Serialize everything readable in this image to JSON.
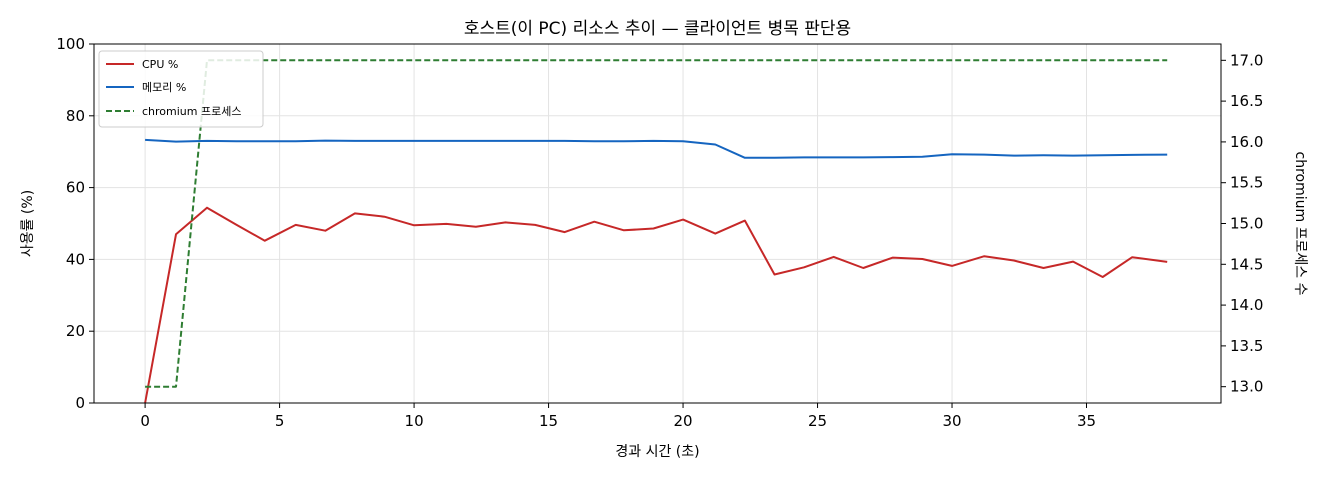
{
  "chart_data": {
    "type": "line",
    "title": "호스트(이 PC) 리소스 추이 — 클라이언트 병목 판단용",
    "xlabel": "경과 시간 (초)",
    "ylabel": "사용률 (%)",
    "y2label": "chromium 프로세스 수",
    "xlim": [
      -1.9,
      40.0
    ],
    "ylim": [
      0,
      100
    ],
    "y2lim": [
      12.8,
      17.2
    ],
    "xticks": [
      0,
      5,
      10,
      15,
      20,
      25,
      30,
      35
    ],
    "yticks": [
      0,
      20,
      40,
      60,
      80,
      100
    ],
    "y2ticks": [
      "13.0",
      "13.5",
      "14.0",
      "14.5",
      "15.0",
      "15.5",
      "16.0",
      "16.5",
      "17.0"
    ],
    "grid": true,
    "legend_position": "top-left",
    "series": [
      {
        "name": "CPU %",
        "color": "#c62828",
        "style": "solid",
        "axis": "left",
        "x": [
          0,
          1.15,
          2.3,
          3.4,
          4.45,
          5.6,
          6.7,
          7.8,
          8.9,
          10.0,
          11.2,
          12.3,
          13.4,
          14.5,
          15.6,
          16.7,
          17.8,
          18.9,
          20.0,
          21.2,
          22.3,
          23.4,
          24.5,
          25.6,
          26.7,
          27.8,
          28.9,
          30.0,
          31.2,
          32.3,
          33.4,
          34.5,
          35.6,
          36.7,
          38.0
        ],
        "values": [
          0,
          47.0,
          54.4,
          49.6,
          45.2,
          49.6,
          48.0,
          52.8,
          51.9,
          49.5,
          49.9,
          49.1,
          50.3,
          49.6,
          47.6,
          50.5,
          48.1,
          48.6,
          51.1,
          47.2,
          50.8,
          35.8,
          37.8,
          40.7,
          37.6,
          40.5,
          40.1,
          38.2,
          40.9,
          39.7,
          37.6,
          39.4,
          35.1,
          40.6,
          39.3
        ]
      },
      {
        "name": "메모리 %",
        "color": "#1565c0",
        "style": "solid",
        "axis": "left",
        "x": [
          0,
          1.15,
          2.3,
          3.4,
          4.45,
          5.6,
          6.7,
          7.8,
          8.9,
          10.0,
          11.2,
          12.3,
          13.4,
          14.5,
          15.6,
          16.7,
          17.8,
          18.9,
          20.0,
          21.2,
          22.3,
          23.4,
          24.5,
          25.6,
          26.7,
          27.8,
          28.9,
          30.0,
          31.2,
          32.3,
          33.4,
          34.5,
          35.6,
          36.7,
          38.0
        ],
        "values": [
          73.3,
          72.8,
          73.0,
          72.9,
          72.9,
          72.9,
          73.1,
          73.0,
          73.0,
          73.0,
          73.0,
          73.0,
          73.0,
          73.0,
          73.0,
          72.9,
          72.9,
          73.0,
          72.9,
          72.0,
          68.3,
          68.3,
          68.4,
          68.4,
          68.4,
          68.5,
          68.6,
          69.3,
          69.2,
          68.9,
          69.0,
          68.9,
          69.0,
          69.1,
          69.2
        ]
      },
      {
        "name": "chromium 프로세스",
        "color": "#2e7d32",
        "style": "dashed",
        "axis": "right",
        "x": [
          0,
          1.15,
          2.3,
          3.4,
          4.45,
          5.6,
          6.7,
          7.8,
          8.9,
          10.0,
          11.2,
          12.3,
          13.4,
          14.5,
          15.6,
          16.7,
          17.8,
          18.9,
          20.0,
          21.2,
          22.3,
          23.4,
          24.5,
          25.6,
          26.7,
          27.8,
          28.9,
          30.0,
          31.2,
          32.3,
          33.4,
          34.5,
          35.6,
          36.7,
          38.0
        ],
        "values": [
          13,
          13,
          17,
          17,
          17,
          17,
          17,
          17,
          17,
          17,
          17,
          17,
          17,
          17,
          17,
          17,
          17,
          17,
          17,
          17,
          17,
          17,
          17,
          17,
          17,
          17,
          17,
          17,
          17,
          17,
          17,
          17,
          17,
          17,
          17
        ]
      }
    ]
  }
}
